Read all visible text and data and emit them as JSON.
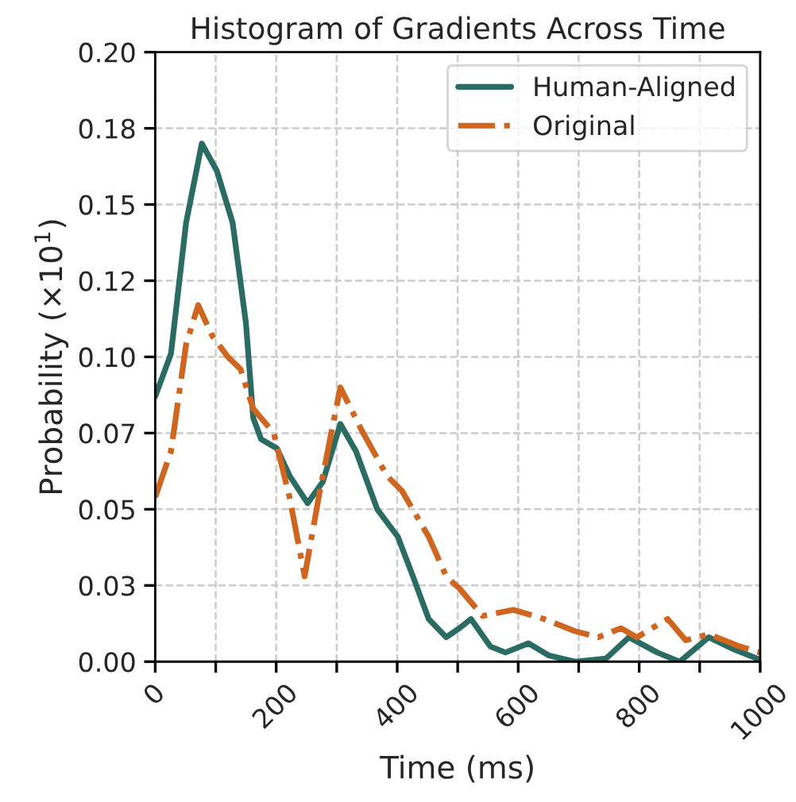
{
  "chart_data": {
    "type": "line",
    "title": "Histogram of Gradients Across Time",
    "xlabel": "Time (ms)",
    "ylabel": "Probability (×10$^{1}$)",
    "xlim": [
      0,
      1000
    ],
    "ylim": [
      0,
      0.2
    ],
    "xticks": [
      0,
      {
        "value": 100,
        "label": null
      },
      200,
      {
        "value": 300,
        "label": null
      },
      400,
      {
        "value": 500,
        "label": null
      },
      600,
      {
        "value": 700,
        "label": null
      },
      800,
      {
        "value": 900,
        "label": null
      },
      1000
    ],
    "yticks": [
      {
        "value": 0,
        "label": "0.00"
      },
      {
        "value": 0.025,
        "label": "0.03"
      },
      {
        "value": 0.05,
        "label": "0.05"
      },
      {
        "value": 0.075,
        "label": "0.07"
      },
      {
        "value": 0.1,
        "label": "0.10"
      },
      {
        "value": 0.125,
        "label": "0.12"
      },
      {
        "value": 0.15,
        "label": "0.15"
      },
      {
        "value": 0.175,
        "label": "0.18"
      },
      {
        "value": 0.2,
        "label": "0.20"
      }
    ],
    "grid": true,
    "legend": "top right",
    "marker": "none",
    "series": [
      {
        "name": "Human-Aligned",
        "color": "#2a6b64",
        "line_style": "solid",
        "x": [
          0,
          26,
          51,
          77,
          102,
          128,
          150,
          162,
          175,
          201,
          222,
          252,
          277,
          306,
          332,
          367,
          401,
          426,
          452,
          481,
          503,
          522,
          554,
          579,
          617,
          651,
          694,
          745,
          783,
          830,
          867,
          915,
          957,
          995
        ],
        "values": [
          0.087,
          0.101,
          0.144,
          0.17,
          0.161,
          0.144,
          0.111,
          0.08,
          0.073,
          0.07,
          0.061,
          0.052,
          0.059,
          0.078,
          0.069,
          0.05,
          0.041,
          0.028,
          0.014,
          0.008,
          0.011,
          0.014,
          0.005,
          0.003,
          0.006,
          0.002,
          0.0,
          0.001,
          0.008,
          0.003,
          0.0,
          0.008,
          0.004,
          0.001
        ]
      },
      {
        "name": "Original",
        "color": "#d0651f",
        "line_style": "dashdot",
        "x": [
          0,
          26,
          51,
          71,
          94,
          120,
          141,
          162,
          196,
          222,
          247,
          273,
          306,
          341,
          383,
          408,
          452,
          481,
          503,
          541,
          592,
          643,
          694,
          732,
          770,
          796,
          847,
          877,
          915,
          966,
          1000
        ],
        "values": [
          0.054,
          0.069,
          0.104,
          0.117,
          0.107,
          0.1,
          0.096,
          0.083,
          0.075,
          0.054,
          0.028,
          0.057,
          0.09,
          0.076,
          0.061,
          0.056,
          0.041,
          0.028,
          0.024,
          0.015,
          0.017,
          0.014,
          0.01,
          0.008,
          0.011,
          0.008,
          0.014,
          0.007,
          0.009,
          0.005,
          0.003
        ]
      }
    ]
  }
}
